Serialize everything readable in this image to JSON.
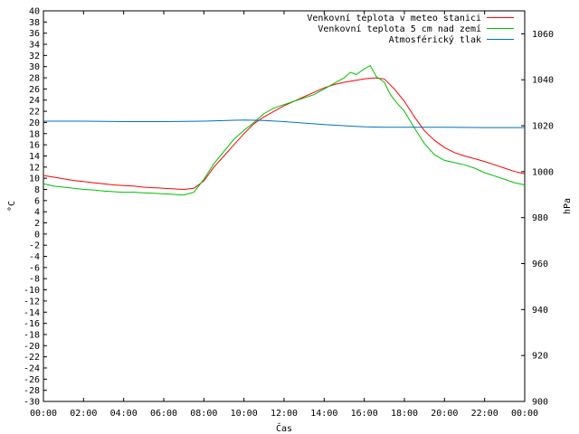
{
  "chart_data": {
    "type": "line",
    "xlabel": "Čas",
    "ylabel": "°C",
    "y2label": "hPa",
    "xlim": [
      0,
      24
    ],
    "ylim": [
      -30,
      40
    ],
    "y2lim": [
      900,
      1070
    ],
    "x_ticks": [
      "00:00",
      "02:00",
      "04:00",
      "06:00",
      "08:00",
      "10:00",
      "12:00",
      "14:00",
      "16:00",
      "18:00",
      "20:00",
      "22:00",
      "00:00"
    ],
    "y_ticks": [
      -30,
      -28,
      -26,
      -24,
      -22,
      -20,
      -18,
      -16,
      -14,
      -12,
      -10,
      -8,
      -6,
      -4,
      -2,
      0,
      2,
      4,
      6,
      8,
      10,
      12,
      14,
      16,
      18,
      20,
      22,
      24,
      26,
      28,
      30,
      32,
      34,
      36,
      38,
      40
    ],
    "y2_ticks": [
      900,
      920,
      940,
      960,
      980,
      1000,
      1020,
      1040,
      1060
    ],
    "legend_position": "top-right",
    "grid": false,
    "series": [
      {
        "name": "Venkovní teplota v meteo stanici",
        "color": "#ff0000",
        "axis": "left",
        "x": [
          0,
          0.5,
          1,
          1.5,
          2,
          2.5,
          3,
          3.5,
          4,
          4.5,
          5,
          5.5,
          6,
          6.5,
          7,
          7.5,
          8,
          8.5,
          9,
          9.5,
          10,
          10.5,
          11,
          11.5,
          12,
          12.5,
          13,
          13.5,
          14,
          14.5,
          15,
          15.5,
          16,
          16.5,
          17,
          17.5,
          18,
          18.5,
          19,
          19.5,
          20,
          20.5,
          21,
          21.5,
          22,
          22.5,
          23,
          23.5,
          24
        ],
        "values": [
          10.5,
          10.2,
          9.9,
          9.6,
          9.4,
          9.2,
          9.0,
          8.8,
          8.7,
          8.6,
          8.4,
          8.3,
          8.2,
          8.1,
          8.0,
          8.2,
          9.5,
          12.0,
          14.0,
          16.0,
          18.0,
          19.8,
          21.0,
          22.0,
          23.0,
          23.8,
          24.6,
          25.4,
          26.2,
          26.8,
          27.2,
          27.5,
          27.8,
          28.0,
          27.8,
          26.0,
          23.8,
          21.0,
          18.5,
          16.8,
          15.5,
          14.6,
          14.0,
          13.5,
          13.0,
          12.4,
          11.8,
          11.2,
          10.8
        ]
      },
      {
        "name": "Venkovní teplota 5 cm nad zemí",
        "color": "#00c000",
        "axis": "left",
        "x": [
          0,
          0.5,
          1,
          1.5,
          2,
          2.5,
          3,
          3.5,
          4,
          4.5,
          5,
          5.5,
          6,
          6.5,
          7,
          7.5,
          8,
          8.5,
          9,
          9.5,
          10,
          10.5,
          11,
          11.5,
          12,
          12.5,
          13,
          13.5,
          14,
          14.5,
          15,
          15.3,
          15.6,
          16,
          16.3,
          16.6,
          17,
          17.3,
          17.6,
          18,
          18.5,
          19,
          19.5,
          20,
          20.5,
          21,
          21.5,
          22,
          22.5,
          23,
          23.5,
          24
        ],
        "values": [
          9.0,
          8.6,
          8.4,
          8.2,
          8.0,
          7.9,
          7.7,
          7.6,
          7.5,
          7.5,
          7.4,
          7.3,
          7.2,
          7.1,
          7.0,
          7.5,
          9.8,
          12.6,
          14.8,
          17.0,
          18.6,
          20.0,
          21.6,
          22.6,
          23.2,
          23.8,
          24.4,
          25.0,
          26.0,
          27.0,
          28.0,
          29.0,
          28.6,
          29.6,
          30.2,
          28.2,
          27.2,
          25.0,
          23.6,
          22.0,
          19.0,
          16.2,
          14.2,
          13.2,
          12.8,
          12.4,
          11.8,
          11.0,
          10.4,
          9.8,
          9.2,
          8.8
        ]
      },
      {
        "name": "Atmosférický tlak",
        "color": "#0070c0",
        "axis": "right",
        "x": [
          0,
          2,
          4,
          6,
          8,
          10,
          11,
          12,
          14,
          16,
          17,
          18,
          20,
          22,
          24
        ],
        "values": [
          1022,
          1022,
          1021.8,
          1021.8,
          1022,
          1022.5,
          1022.3,
          1021.8,
          1020.5,
          1019.5,
          1019.3,
          1019.3,
          1019.3,
          1019.2,
          1019.2
        ]
      }
    ]
  }
}
